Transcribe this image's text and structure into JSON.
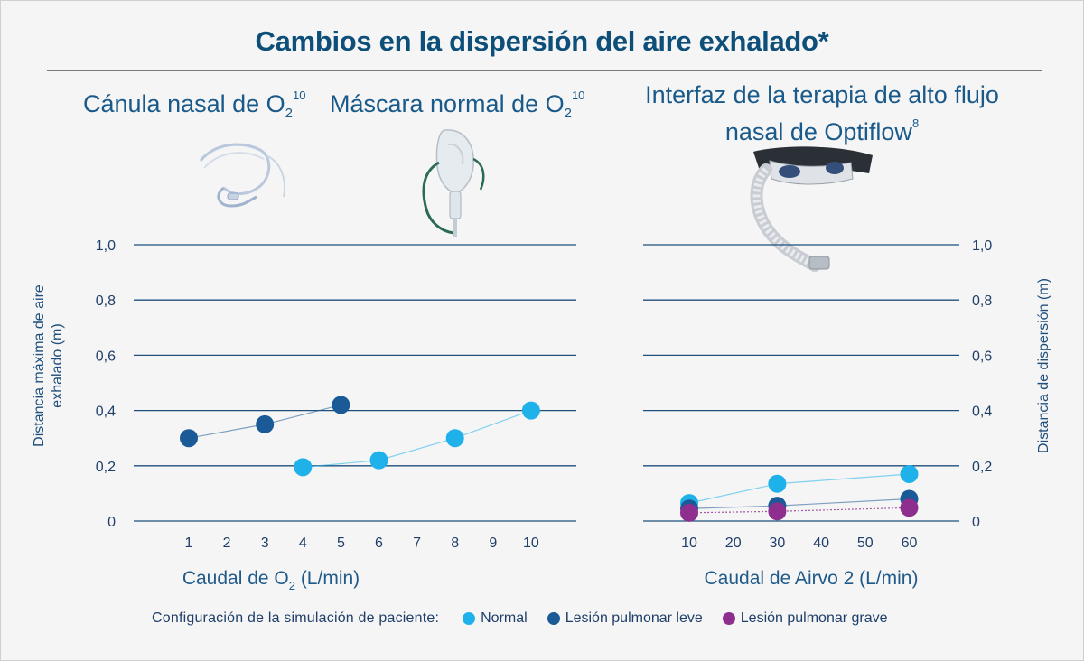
{
  "title": "Cambios en la dispersión del aire exhalado*",
  "devices": {
    "nasal": {
      "text": "Cánula nasal de O",
      "sub": "2",
      "sup": "10"
    },
    "mask": {
      "text": "Máscara normal de O",
      "sub": "2",
      "sup": "10"
    },
    "hfnc": {
      "line1": "Interfaz de la terapia de alto flujo",
      "line2": "nasal de Optiflow",
      "sup": "8"
    }
  },
  "legend": {
    "title": "Configuración de la simulación de paciente:",
    "items": [
      {
        "label": "Normal",
        "color": "#1fb2ea"
      },
      {
        "label": "Lesión pulmonar leve",
        "color": "#1a5a96"
      },
      {
        "label": "Lesión pulmonar grave",
        "color": "#8e2f8f"
      }
    ]
  },
  "chart_data": [
    {
      "type": "line",
      "title": "",
      "xlabel": {
        "text": "Caudal de O",
        "sub": "2",
        "after": " (L/min)"
      },
      "ylabel": [
        "Distancia máxima de aire",
        "exhalado (m)"
      ],
      "x_ticks": [
        "1",
        "2",
        "3",
        "4",
        "5",
        "6",
        "7",
        "8",
        "9",
        "10"
      ],
      "y_ticks": [
        "0",
        "0,2",
        "0,4",
        "0,6",
        "0,8",
        "1,0"
      ],
      "ylim": [
        0,
        1.0
      ],
      "grid": true,
      "series": [
        {
          "name": "Lesión pulmonar leve",
          "color": "#1a5a96",
          "points": [
            {
              "x": 1,
              "y": 0.3
            },
            {
              "x": 3,
              "y": 0.35
            },
            {
              "x": 5,
              "y": 0.42
            }
          ]
        },
        {
          "name": "Normal",
          "color": "#1fb2ea",
          "points": [
            {
              "x": 4,
              "y": 0.195
            },
            {
              "x": 6,
              "y": 0.22
            },
            {
              "x": 8,
              "y": 0.3
            },
            {
              "x": 10,
              "y": 0.4
            }
          ]
        }
      ]
    },
    {
      "type": "line",
      "title": "",
      "xlabel": {
        "text": "Caudal de Airvo 2 (L/min)",
        "sub": "",
        "after": ""
      },
      "ylabel": [
        "Distancia de dispersión (m)"
      ],
      "x_ticks": [
        "10",
        "20",
        "30",
        "40",
        "50",
        "60"
      ],
      "y_ticks": [
        "0",
        "0,2",
        "0,4",
        "0,6",
        "0,8",
        "1,0"
      ],
      "ylim": [
        0,
        1.0
      ],
      "grid": true,
      "series": [
        {
          "name": "Normal",
          "color": "#1fb2ea",
          "points": [
            {
              "x": 10,
              "y": 0.065
            },
            {
              "x": 30,
              "y": 0.135
            },
            {
              "x": 60,
              "y": 0.17
            }
          ]
        },
        {
          "name": "Lesión pulmonar leve",
          "color": "#1a5a96",
          "points": [
            {
              "x": 10,
              "y": 0.045
            },
            {
              "x": 30,
              "y": 0.055
            },
            {
              "x": 60,
              "y": 0.08
            }
          ]
        },
        {
          "name": "Lesión pulmonar grave",
          "color": "#8e2f8f",
          "points": [
            {
              "x": 10,
              "y": 0.03
            },
            {
              "x": 30,
              "y": 0.035
            },
            {
              "x": 60,
              "y": 0.048
            }
          ]
        }
      ]
    }
  ]
}
